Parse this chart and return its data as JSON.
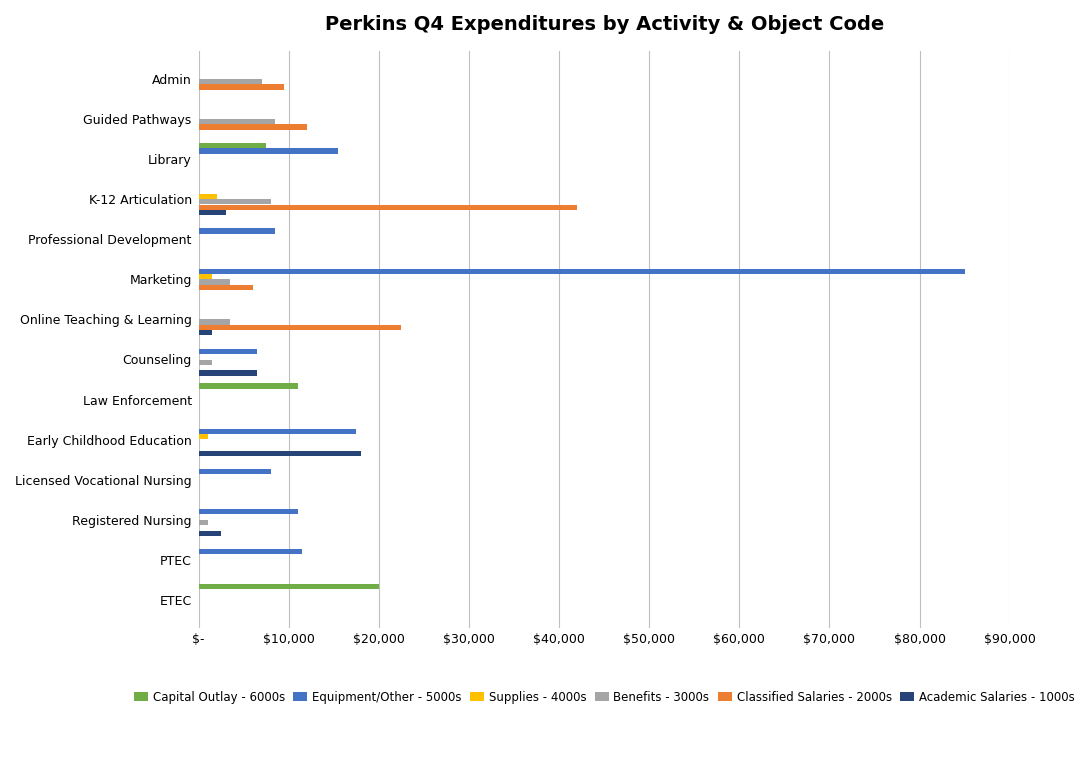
{
  "title": "Perkins Q4 Expenditures by Activity & Object Code",
  "categories": [
    "Admin",
    "Guided Pathways",
    "Library",
    "K-12 Articulation",
    "Professional Development",
    "Marketing",
    "Online Teaching & Learning",
    "Counseling",
    "Law Enforcement",
    "Early Childhood Education",
    "Licensed Vocational Nursing",
    "Registered Nursing",
    "PTEC",
    "ETEC"
  ],
  "series": {
    "Capital Outlay - 6000s": [
      0,
      0,
      7500,
      0,
      0,
      0,
      0,
      0,
      11000,
      0,
      0,
      0,
      0,
      20000
    ],
    "Equipment/Other - 5000s": [
      0,
      0,
      15500,
      0,
      8500,
      85000,
      0,
      6500,
      0,
      17500,
      8000,
      11000,
      11500,
      0
    ],
    "Supplies - 4000s": [
      0,
      0,
      0,
      2000,
      0,
      1500,
      0,
      0,
      0,
      1000,
      0,
      0,
      0,
      0
    ],
    "Benefits - 3000s": [
      7000,
      8500,
      0,
      8000,
      0,
      3500,
      3500,
      1500,
      0,
      0,
      0,
      1000,
      0,
      0
    ],
    "Classified Salaries - 2000s": [
      9500,
      12000,
      0,
      42000,
      0,
      6000,
      22500,
      0,
      0,
      0,
      0,
      0,
      0,
      0
    ],
    "Academic Salaries - 1000s": [
      0,
      0,
      0,
      3000,
      0,
      0,
      1500,
      6500,
      0,
      18000,
      0,
      2500,
      0,
      0
    ]
  },
  "colors": {
    "Capital Outlay - 6000s": "#70AD47",
    "Equipment/Other - 5000s": "#4472C4",
    "Supplies - 4000s": "#FFC000",
    "Benefits - 3000s": "#A5A5A5",
    "Classified Salaries - 2000s": "#ED7D31",
    "Academic Salaries - 1000s": "#264478"
  },
  "xlim": [
    0,
    90000
  ],
  "xticks": [
    0,
    10000,
    20000,
    30000,
    40000,
    50000,
    60000,
    70000,
    80000,
    90000
  ],
  "xticklabels": [
    "$-",
    "$10,000",
    "$20,000",
    "$30,000",
    "$40,000",
    "$50,000",
    "$60,000",
    "$70,000",
    "$80,000",
    "$90,000"
  ],
  "background_color": "#FFFFFF",
  "grid_color": "#BFBFBF",
  "bar_height": 0.13,
  "bar_gap": 0.005
}
